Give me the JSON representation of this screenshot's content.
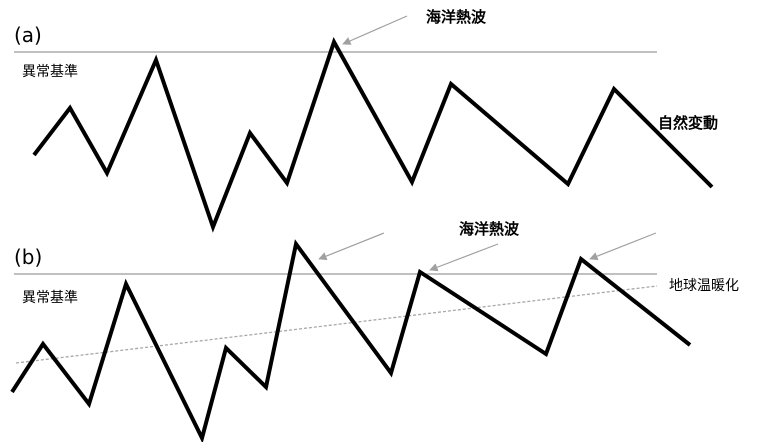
{
  "colors": {
    "line": "#000000",
    "threshold": "#9a9a9a",
    "trend": "#a8a8a8",
    "arrow": "#a0a0a0",
    "text": "#000000"
  },
  "panel_a": {
    "label": "(a)",
    "threshold_label": "異常基準",
    "heatwave_label": "海洋熱波",
    "variability_label": "自然変動"
  },
  "panel_b": {
    "label": "(b)",
    "threshold_label": "異常基準",
    "heatwave_label": "海洋熱波",
    "warming_label": "地球温暖化"
  }
}
